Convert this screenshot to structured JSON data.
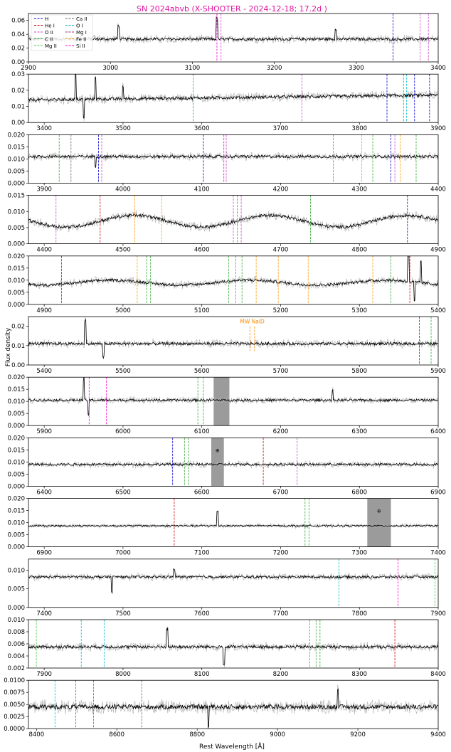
{
  "chart_data": {
    "type": "line",
    "title": "SN 2024abvb (X-SHOOTER - 2024-12-18; 17.2d )",
    "title_color": "#e0149e",
    "xlabel": "Rest Wavelength [Å]",
    "ylabel": "Flux density",
    "grid": false,
    "legend_placement": "top-left of first panel",
    "legend": [
      {
        "name": "H",
        "color": "#0000cc"
      },
      {
        "name": "He I",
        "color": "#cc0000"
      },
      {
        "name": "O II",
        "color": "#cc44cc"
      },
      {
        "name": "C II",
        "color": "#33aa33"
      },
      {
        "name": "Mg II",
        "color": "#44cc44"
      },
      {
        "name": "Ca II",
        "color": "#666666"
      },
      {
        "name": "O I",
        "color": "#00bbcc"
      },
      {
        "name": "Mg I",
        "color": "#993366"
      },
      {
        "name": "Fe II",
        "color": "#ff9900"
      },
      {
        "name": "Si II",
        "color": "#ff00cc"
      }
    ],
    "telluric_symbol": "⊕",
    "annotation_text": "MW NaID",
    "annotation_color": "#ff8800",
    "panels": [
      {
        "xlim": [
          2900,
          3400
        ],
        "ylim": [
          0,
          0.07
        ],
        "xticks": [
          2900,
          3000,
          3100,
          3200,
          3300,
          3400
        ],
        "yticks": [
          0,
          0.02,
          0.04,
          0.06
        ],
        "ytick_labels": [
          "0.00",
          "0.02",
          "0.04",
          "0.06"
        ],
        "base": 0.033,
        "noise": 0.0025,
        "lines": [
          {
            "x": 3130,
            "c": "#ff00cc"
          },
          {
            "x": 3135,
            "c": "#cc44cc"
          },
          {
            "x": 3345,
            "c": "#0000cc"
          },
          {
            "x": 3378,
            "c": "#cc44cc"
          },
          {
            "x": 3388,
            "c": "#cc44cc"
          }
        ],
        "spikes": [
          {
            "x": 3010,
            "d": 0.02
          },
          {
            "x": 3130,
            "d": 0.03
          },
          {
            "x": 3275,
            "d": 0.015
          }
        ],
        "legend": true
      },
      {
        "xlim": [
          3380,
          3900
        ],
        "ylim": [
          0,
          0.03
        ],
        "xticks": [
          3400,
          3500,
          3600,
          3700,
          3800,
          3900
        ],
        "yticks": [
          0,
          0.01,
          0.02,
          0.03
        ],
        "ytick_labels": [
          "0.00",
          "0.01",
          "0.02",
          "0.03"
        ],
        "base": 0.014,
        "noise": 0.0012,
        "slope": 0.003,
        "lines": [
          {
            "x": 3589,
            "c": "#33aa33"
          },
          {
            "x": 3727,
            "c": "#cc44cc"
          },
          {
            "x": 3835,
            "c": "#0000cc"
          },
          {
            "x": 3856,
            "c": "#33aa33"
          },
          {
            "x": 3860,
            "c": "#00bbcc"
          },
          {
            "x": 3870,
            "c": "#0000cc"
          },
          {
            "x": 3889,
            "c": "#0000cc"
          }
        ],
        "spikes": [
          {
            "x": 3440,
            "d": 0.016
          },
          {
            "x": 3450,
            "d": -0.012
          },
          {
            "x": 3465,
            "d": 0.014
          },
          {
            "x": 3500,
            "d": 0.008
          }
        ]
      },
      {
        "xlim": [
          3880,
          4400
        ],
        "ylim": [
          0,
          0.02
        ],
        "xticks": [
          3900,
          4000,
          4100,
          4200,
          4300,
          4400
        ],
        "yticks": [
          0,
          0.005,
          0.01,
          0.015,
          0.02
        ],
        "ytick_labels": [
          "0.000",
          "0.005",
          "0.010",
          "0.015",
          "0.020"
        ],
        "base": 0.011,
        "noise": 0.0007,
        "lines": [
          {
            "x": 3919,
            "c": "#33aa33"
          },
          {
            "x": 3934,
            "c": "#666666"
          },
          {
            "x": 3969,
            "c": "#0000cc"
          },
          {
            "x": 3973,
            "c": "#cc44cc"
          },
          {
            "x": 4102,
            "c": "#0000cc"
          },
          {
            "x": 4128,
            "c": "#ff00cc"
          },
          {
            "x": 4131,
            "c": "#cc44cc"
          },
          {
            "x": 4267,
            "c": "#33aa33"
          },
          {
            "x": 4303,
            "c": "#ff9900"
          },
          {
            "x": 4317,
            "c": "#33aa33"
          },
          {
            "x": 4340,
            "c": "#0000cc"
          },
          {
            "x": 4345,
            "c": "#cc44cc"
          },
          {
            "x": 4352,
            "c": "#ff9900"
          },
          {
            "x": 4372,
            "c": "#33aa33"
          }
        ],
        "spikes": [
          {
            "x": 3965,
            "d": -0.004
          }
        ]
      },
      {
        "xlim": [
          4380,
          4900
        ],
        "ylim": [
          0,
          0.015
        ],
        "xticks": [
          4400,
          4500,
          4600,
          4700,
          4800,
          4900
        ],
        "yticks": [
          0,
          0.005,
          0.01,
          0.015
        ],
        "ytick_labels": [
          "0.000",
          "0.005",
          "0.010",
          "0.015"
        ],
        "base": 0.007,
        "noise": 0.0006,
        "wave": 0.0018,
        "lines": [
          {
            "x": 4415,
            "c": "#cc44cc"
          },
          {
            "x": 4471,
            "c": "#cc0000"
          },
          {
            "x": 4515,
            "c": "#ff9900"
          },
          {
            "x": 4549,
            "c": "#ff9900"
          },
          {
            "x": 4640,
            "c": "#cc44cc"
          },
          {
            "x": 4645,
            "c": "#cc44cc"
          },
          {
            "x": 4650,
            "c": "#cc44cc"
          },
          {
            "x": 4738,
            "c": "#33aa33"
          },
          {
            "x": 4861,
            "c": "#0000cc"
          }
        ],
        "spikes": []
      },
      {
        "xlim": [
          4880,
          5400
        ],
        "ylim": [
          0,
          0.02
        ],
        "xticks": [
          4900,
          5000,
          5100,
          5200,
          5300,
          5400
        ],
        "yticks": [
          0,
          0.005,
          0.01,
          0.015,
          0.02
        ],
        "ytick_labels": [
          "0.000",
          "0.005",
          "0.010",
          "0.015",
          "0.020"
        ],
        "base": 0.009,
        "noise": 0.0007,
        "wave": 0.001,
        "lines": [
          {
            "x": 4922,
            "c": "#cc0000"
          },
          {
            "x": 5018,
            "c": "#ff9900"
          },
          {
            "x": 5030,
            "c": "#33aa33"
          },
          {
            "x": 5035,
            "c": "#33aa33"
          },
          {
            "x": 5134,
            "c": "#33aa33"
          },
          {
            "x": 5143,
            "c": "#33aa33"
          },
          {
            "x": 5151,
            "c": "#33aa33"
          },
          {
            "x": 5169,
            "c": "#ff9900"
          },
          {
            "x": 5197,
            "c": "#ff9900"
          },
          {
            "x": 5235,
            "c": "#ff9900"
          },
          {
            "x": 5317,
            "c": "#ff9900"
          },
          {
            "x": 5340,
            "c": "#33aa33"
          },
          {
            "x": 5364,
            "c": "#cc0000"
          }
        ],
        "spikes": [
          {
            "x": 5362,
            "d": 0.011
          },
          {
            "x": 5370,
            "d": -0.008
          },
          {
            "x": 5378,
            "d": 0.009
          }
        ]
      },
      {
        "xlim": [
          5380,
          5900
        ],
        "ylim": [
          0,
          0.025
        ],
        "xticks": [
          5400,
          5500,
          5600,
          5700,
          5800,
          5900
        ],
        "yticks": [
          0,
          0.01,
          0.02
        ],
        "ytick_labels": [
          "0.00",
          "0.01",
          "0.02"
        ],
        "base": 0.011,
        "noise": 0.0009,
        "lines": [
          {
            "x": 5661,
            "c": "#ff8800",
            "short": true
          },
          {
            "x": 5667,
            "c": "#ff8800",
            "short": true
          },
          {
            "x": 5876,
            "c": "#cc0000"
          },
          {
            "x": 5891,
            "c": "#33aa33"
          }
        ],
        "spikes": [
          {
            "x": 5452,
            "d": 0.012
          },
          {
            "x": 5475,
            "d": -0.007
          }
        ],
        "annot": {
          "x": 5664,
          "y": 0.0215
        }
      },
      {
        "xlim": [
          5880,
          6400
        ],
        "ylim": [
          0,
          0.02
        ],
        "xticks": [
          5900,
          6000,
          6100,
          6200,
          6300,
          6400
        ],
        "yticks": [
          0,
          0.005,
          0.01,
          0.015,
          0.02
        ],
        "ytick_labels": [
          "0.000",
          "0.005",
          "0.010",
          "0.015",
          "0.020"
        ],
        "base": 0.0105,
        "noise": 0.0006,
        "lines": [
          {
            "x": 5957,
            "c": "#ff00cc"
          },
          {
            "x": 5979,
            "c": "#ff00cc"
          },
          {
            "x": 6095,
            "c": "#33aa33"
          },
          {
            "x": 6102,
            "c": "#33aa33"
          }
        ],
        "spikes": [
          {
            "x": 5950,
            "d": 0.009
          },
          {
            "x": 5956,
            "d": -0.006
          },
          {
            "x": 6266,
            "d": 0.004
          }
        ],
        "shade": [
          6115,
          6135
        ]
      },
      {
        "xlim": [
          6380,
          6900
        ],
        "ylim": [
          0,
          0.02
        ],
        "xticks": [
          6400,
          6500,
          6600,
          6700,
          6800,
          6900
        ],
        "yticks": [
          0,
          0.005,
          0.01,
          0.015,
          0.02
        ],
        "ytick_labels": [
          "0.000",
          "0.005",
          "0.010",
          "0.015",
          "0.020"
        ],
        "base": 0.009,
        "noise": 0.0006,
        "lines": [
          {
            "x": 6563,
            "c": "#0000cc"
          },
          {
            "x": 6578,
            "c": "#33aa33"
          },
          {
            "x": 6583,
            "c": "#33aa33"
          },
          {
            "x": 6678,
            "c": "#cc0000"
          },
          {
            "x": 6721,
            "c": "#cc44cc"
          }
        ],
        "spikes": [],
        "shade": [
          6612,
          6628
        ],
        "telluric": 6620
      },
      {
        "xlim": [
          6880,
          7400
        ],
        "ylim": [
          0,
          0.02
        ],
        "xticks": [
          6900,
          7000,
          7100,
          7200,
          7300,
          7400
        ],
        "yticks": [
          0,
          0.005,
          0.01,
          0.015,
          0.02
        ],
        "ytick_labels": [
          "0.000",
          "0.005",
          "0.010",
          "0.015",
          "0.020"
        ],
        "base": 0.0087,
        "noise": 0.0004,
        "lines": [
          {
            "x": 7065,
            "c": "#cc0000"
          },
          {
            "x": 7231,
            "c": "#33aa33"
          },
          {
            "x": 7236,
            "c": "#33aa33"
          }
        ],
        "spikes": [
          {
            "x": 7120,
            "d": 0.006
          }
        ],
        "shade": [
          7310,
          7340
        ],
        "telluric": 7325
      },
      {
        "xlim": [
          7380,
          7900
        ],
        "ylim": [
          0,
          0.013
        ],
        "xticks": [
          7400,
          7500,
          7600,
          7700,
          7800,
          7900
        ],
        "yticks": [
          0,
          0.005,
          0.01
        ],
        "ytick_labels": [
          "0.000",
          "0.005",
          "0.010"
        ],
        "base": 0.0082,
        "noise": 0.0004,
        "lines": [
          {
            "x": 7774,
            "c": "#00bbcc"
          },
          {
            "x": 7849,
            "c": "#ff00cc"
          },
          {
            "x": 7896,
            "c": "#44cc44"
          }
        ],
        "spikes": [
          {
            "x": 7486,
            "d": -0.004
          },
          {
            "x": 7565,
            "d": 0.002
          }
        ]
      },
      {
        "xlim": [
          7880,
          8400
        ],
        "ylim": [
          0.002,
          0.01
        ],
        "xticks": [
          7900,
          8000,
          8100,
          8200,
          8300,
          8400
        ],
        "yticks": [
          0.002,
          0.004,
          0.006,
          0.008,
          0.01
        ],
        "ytick_labels": [
          "0.002",
          "0.004",
          "0.006",
          "0.008",
          "0.010"
        ],
        "base": 0.0055,
        "noise": 0.0003,
        "lines": [
          {
            "x": 7890,
            "c": "#44cc44"
          },
          {
            "x": 7947,
            "c": "#00bbcc"
          },
          {
            "x": 7976,
            "c": "#00bbcc"
          },
          {
            "x": 8237,
            "c": "#00bbcc"
          },
          {
            "x": 8245,
            "c": "#33aa33"
          },
          {
            "x": 8250,
            "c": "#33aa33"
          },
          {
            "x": 8345,
            "c": "#cc0000"
          }
        ],
        "spikes": [
          {
            "x": 8056,
            "d": 0.003
          },
          {
            "x": 8128,
            "d": -0.003
          }
        ]
      },
      {
        "xlim": [
          8380,
          9400
        ],
        "ylim": [
          0,
          0.01
        ],
        "xticks": [
          8400,
          8600,
          8800,
          9000,
          9200,
          9400
        ],
        "yticks": [
          0,
          0.0025,
          0.005,
          0.0075,
          0.01
        ],
        "ytick_labels": [
          "0.0000",
          "0.0025",
          "0.0050",
          "0.0075",
          "0.0100"
        ],
        "base": 0.0045,
        "noise": 0.0006,
        "lines": [
          {
            "x": 8446,
            "c": "#00bbcc"
          },
          {
            "x": 8498,
            "c": "#666666"
          },
          {
            "x": 8542,
            "c": "#666666"
          },
          {
            "x": 8662,
            "c": "#666666"
          }
        ],
        "spikes": [
          {
            "x": 8828,
            "d": -0.004
          },
          {
            "x": 9150,
            "d": 0.004
          }
        ]
      }
    ]
  }
}
